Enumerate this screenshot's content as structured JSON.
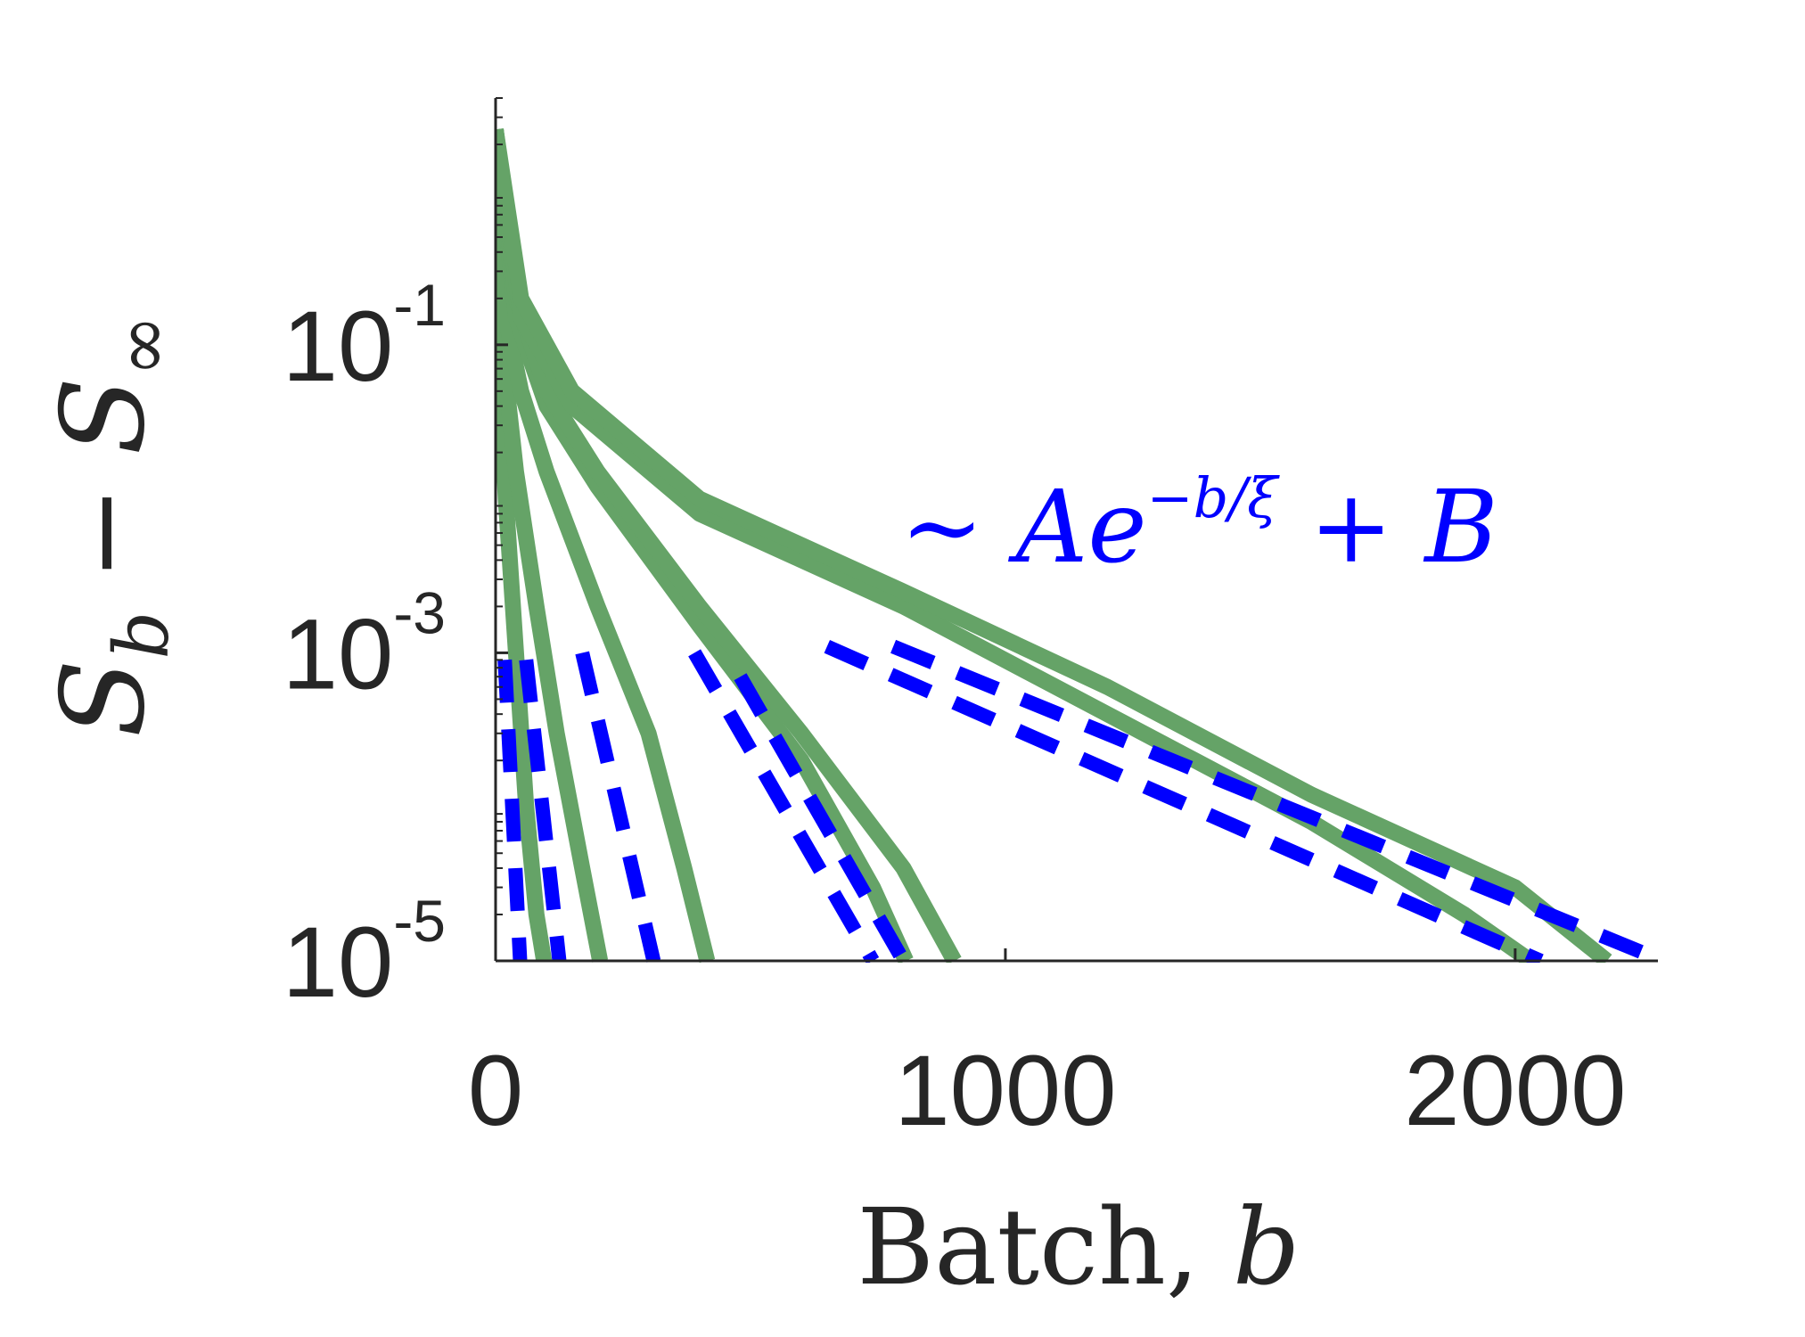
{
  "chart_data": {
    "type": "line",
    "xlabel_text": "Batch, ",
    "xlabel_var": "b",
    "ylabel": {
      "S": "S",
      "b_sub": "b",
      "minus": "−",
      "S2": "S",
      "inf_sub": "∞"
    },
    "annotation": {
      "tilde": "∼ ",
      "A": "A",
      "e": "e",
      "exponent": "−b/ξ",
      "plus": " + ",
      "B": "B"
    },
    "x_ticks": [
      {
        "value": 0,
        "label": "0"
      },
      {
        "value": 1000,
        "label": "1000"
      },
      {
        "value": 2000,
        "label": "2000"
      }
    ],
    "y_ticks": [
      {
        "value": 0.1,
        "base": "10",
        "exp": "-1"
      },
      {
        "value": 0.001,
        "base": "10",
        "exp": "-3"
      },
      {
        "value": 1e-05,
        "base": "10",
        "exp": "-5"
      }
    ],
    "xlim": [
      0,
      2280
    ],
    "ylim": [
      1e-05,
      4
    ],
    "yscale": "log",
    "grid": false,
    "colors": {
      "data": "#65a367",
      "fit": "#0000ff",
      "axis": "#262626"
    },
    "series": [
      {
        "x": [
          0,
          5,
          10,
          20,
          40,
          60,
          80,
          95
        ],
        "y": [
          2.5,
          0.25,
          0.05,
          0.01,
          0.001,
          0.0001,
          2e-05,
          1e-05
        ]
      },
      {
        "x": [
          0,
          10,
          20,
          40,
          80,
          120,
          170,
          205
        ],
        "y": [
          2.5,
          0.2,
          0.06,
          0.015,
          0.002,
          0.0003,
          4e-05,
          1e-05
        ]
      },
      {
        "x": [
          0,
          20,
          50,
          100,
          200,
          300,
          370,
          415
        ],
        "y": [
          2.5,
          0.15,
          0.05,
          0.015,
          0.002,
          0.0003,
          4e-05,
          1e-05
        ]
      },
      {
        "x": [
          0,
          40,
          100,
          200,
          400,
          600,
          740,
          805
        ],
        "y": [
          2.5,
          0.15,
          0.04,
          0.012,
          0.0015,
          0.0002,
          3e-05,
          1e-05
        ]
      },
      {
        "x": [
          0,
          40,
          100,
          200,
          400,
          600,
          800,
          900
        ],
        "y": [
          2.5,
          0.2,
          0.05,
          0.015,
          0.002,
          0.0003,
          4e-05,
          1e-05
        ]
      },
      {
        "x": [
          0,
          50,
          150,
          400,
          800,
          1200,
          1600,
          1900,
          2030
        ],
        "y": [
          2.5,
          0.15,
          0.04,
          0.008,
          0.002,
          0.0004,
          8e-05,
          2e-05,
          1e-05
        ]
      },
      {
        "x": [
          0,
          50,
          150,
          400,
          800,
          1200,
          1600,
          2000,
          2180
        ],
        "y": [
          2.5,
          0.2,
          0.05,
          0.01,
          0.0025,
          0.0006,
          0.00012,
          3e-05,
          1e-05
        ]
      }
    ],
    "fits": [
      {
        "x": [
          18,
          48
        ],
        "y": [
          0.0009,
          1e-05
        ]
      },
      {
        "x": [
          60,
          125
        ],
        "y": [
          0.0009,
          1e-05
        ]
      },
      {
        "x": [
          170,
          310
        ],
        "y": [
          0.001,
          1e-05
        ]
      },
      {
        "x": [
          390,
          740
        ],
        "y": [
          0.001,
          1e-05
        ]
      },
      {
        "x": [
          480,
          800
        ],
        "y": [
          0.0007,
          1e-05
        ]
      },
      {
        "x": [
          650,
          2050
        ],
        "y": [
          0.0011,
          1e-05
        ]
      },
      {
        "x": [
          780,
          2290
        ],
        "y": [
          0.0011,
          1e-05
        ]
      }
    ]
  }
}
